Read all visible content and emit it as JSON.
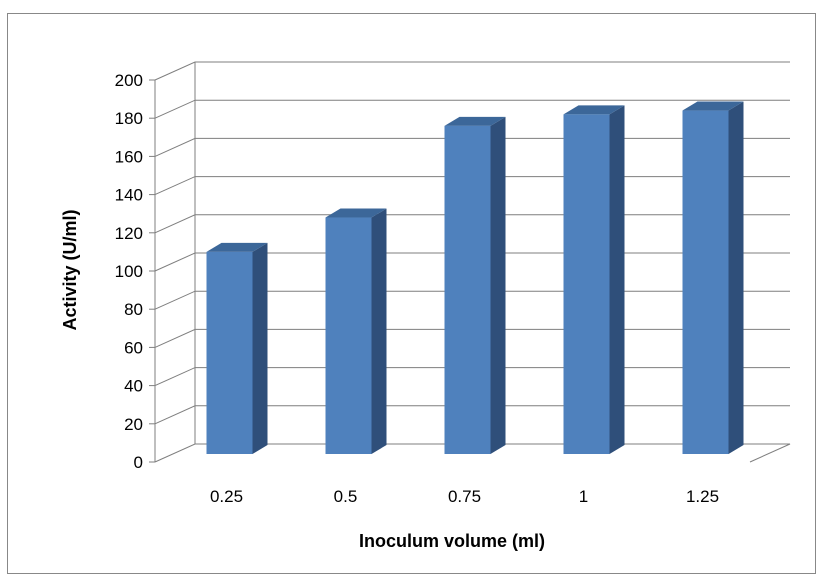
{
  "chart_data": {
    "type": "bar",
    "title": "",
    "xlabel": "Inoculum volume (ml)",
    "ylabel": "Activity (U/ml)",
    "categories": [
      "0.25",
      "0.5",
      "0.75",
      "1",
      "1.25"
    ],
    "values": [
      110,
      128,
      176,
      182,
      184
    ],
    "ylim": [
      0,
      200
    ],
    "yticks": [
      "0",
      "20",
      "40",
      "60",
      "80",
      "100",
      "120",
      "140",
      "160",
      "180",
      "200"
    ],
    "grid": true,
    "legend": "none",
    "colors": {
      "bar_front": "#4f81bd",
      "bar_side": "#2f4f7a",
      "bar_top": "#3c6799",
      "gridline": "#7f7f7f"
    }
  }
}
